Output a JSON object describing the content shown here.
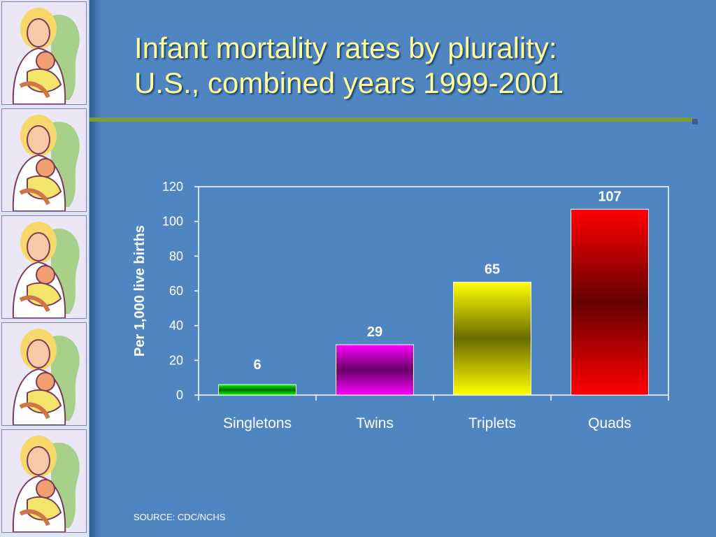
{
  "slide": {
    "title_line1": "Infant mortality rates by plurality:",
    "title_line2": "U.S., combined years 1999-2001",
    "source": "SOURCE: CDC/NCHS",
    "colors": {
      "background": "#4f86c2",
      "title": "#ffff99",
      "rule": "#7e9a3a"
    }
  },
  "chart_data": {
    "type": "bar",
    "categories": [
      "Singletons",
      "Twins",
      "Triplets",
      "Quads"
    ],
    "values": [
      6,
      29,
      65,
      107
    ],
    "data_labels": [
      "6",
      "29",
      "65",
      "107"
    ],
    "ylabel": "Per 1,000 live births",
    "xlabel": "",
    "ylim": [
      0,
      120
    ],
    "yticks": [
      0,
      20,
      40,
      60,
      80,
      100,
      120
    ],
    "grid": false,
    "bar_gradients": [
      [
        "#00ff00",
        "#006600"
      ],
      [
        "#ff00ff",
        "#660066"
      ],
      [
        "#ffff00",
        "#6b6b00"
      ],
      [
        "#ff0000",
        "#660000"
      ]
    ]
  }
}
